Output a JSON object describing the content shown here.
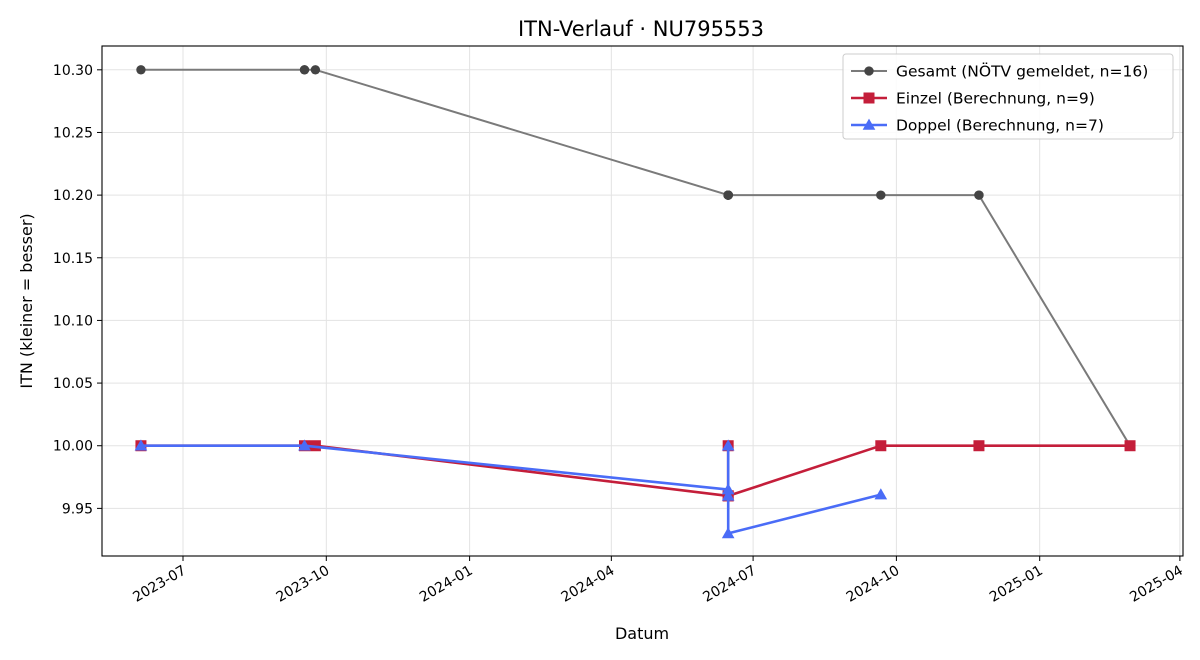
{
  "chart_data": {
    "type": "line",
    "title": "ITN-Verlauf · NU795553",
    "xlabel": "Datum",
    "ylabel": "ITN  (kleiner = besser)",
    "xlim": [
      "2023-05-10",
      "2025-04-03"
    ],
    "ylim": [
      9.912,
      10.319
    ],
    "x_ticks": [
      "2023-07",
      "2023-10",
      "2024-01",
      "2024-04",
      "2024-07",
      "2024-10",
      "2025-01",
      "2025-04"
    ],
    "y_ticks": [
      "9.95",
      "10.00",
      "10.05",
      "10.10",
      "10.15",
      "10.20",
      "10.25",
      "10.30"
    ],
    "grid": true,
    "legend_position": "top-right",
    "series": [
      {
        "name": "Gesamt (NÖTV gemeldet, n=16)",
        "color": "#7a7a7a",
        "marker_color": "#444444",
        "marker": "circle",
        "points": [
          {
            "x": "2023-06-04",
            "y": 10.3
          },
          {
            "x": "2023-09-17",
            "y": 10.3
          },
          {
            "x": "2023-09-17",
            "y": 10.3
          },
          {
            "x": "2023-09-24",
            "y": 10.3
          },
          {
            "x": "2024-06-15",
            "y": 10.2
          },
          {
            "x": "2024-06-15",
            "y": 10.2
          },
          {
            "x": "2024-06-15",
            "y": 10.2
          },
          {
            "x": "2024-06-15",
            "y": 10.2
          },
          {
            "x": "2024-06-15",
            "y": 10.2
          },
          {
            "x": "2024-06-15",
            "y": 10.2
          },
          {
            "x": "2024-06-15",
            "y": 10.2
          },
          {
            "x": "2024-06-15",
            "y": 10.2
          },
          {
            "x": "2024-09-21",
            "y": 10.2
          },
          {
            "x": "2024-11-23",
            "y": 10.2
          },
          {
            "x": "2024-11-23",
            "y": 10.2
          },
          {
            "x": "2025-02-28",
            "y": 10.0
          }
        ]
      },
      {
        "name": "Einzel (Berechnung, n=9)",
        "color": "#c41e3a",
        "marker_color": "#c41e3a",
        "marker": "square",
        "points": [
          {
            "x": "2023-06-04",
            "y": 10.0
          },
          {
            "x": "2023-09-17",
            "y": 10.0
          },
          {
            "x": "2023-09-24",
            "y": 10.0
          },
          {
            "x": "2024-06-15",
            "y": 9.96
          },
          {
            "x": "2024-06-15",
            "y": 10.0
          },
          {
            "x": "2024-06-15",
            "y": 9.96
          },
          {
            "x": "2024-09-21",
            "y": 10.0
          },
          {
            "x": "2024-11-23",
            "y": 10.0
          },
          {
            "x": "2025-02-28",
            "y": 10.0
          }
        ]
      },
      {
        "name": "Doppel (Berechnung, n=7)",
        "color": "#4a6cf7",
        "marker_color": "#4a6cf7",
        "marker": "triangle",
        "points": [
          {
            "x": "2023-06-04",
            "y": 10.0
          },
          {
            "x": "2023-09-17",
            "y": 10.0
          },
          {
            "x": "2024-06-15",
            "y": 9.965
          },
          {
            "x": "2024-06-15",
            "y": 10.0
          },
          {
            "x": "2024-06-15",
            "y": 9.96
          },
          {
            "x": "2024-06-15",
            "y": 9.93
          },
          {
            "x": "2024-09-21",
            "y": 9.961
          }
        ]
      }
    ]
  }
}
